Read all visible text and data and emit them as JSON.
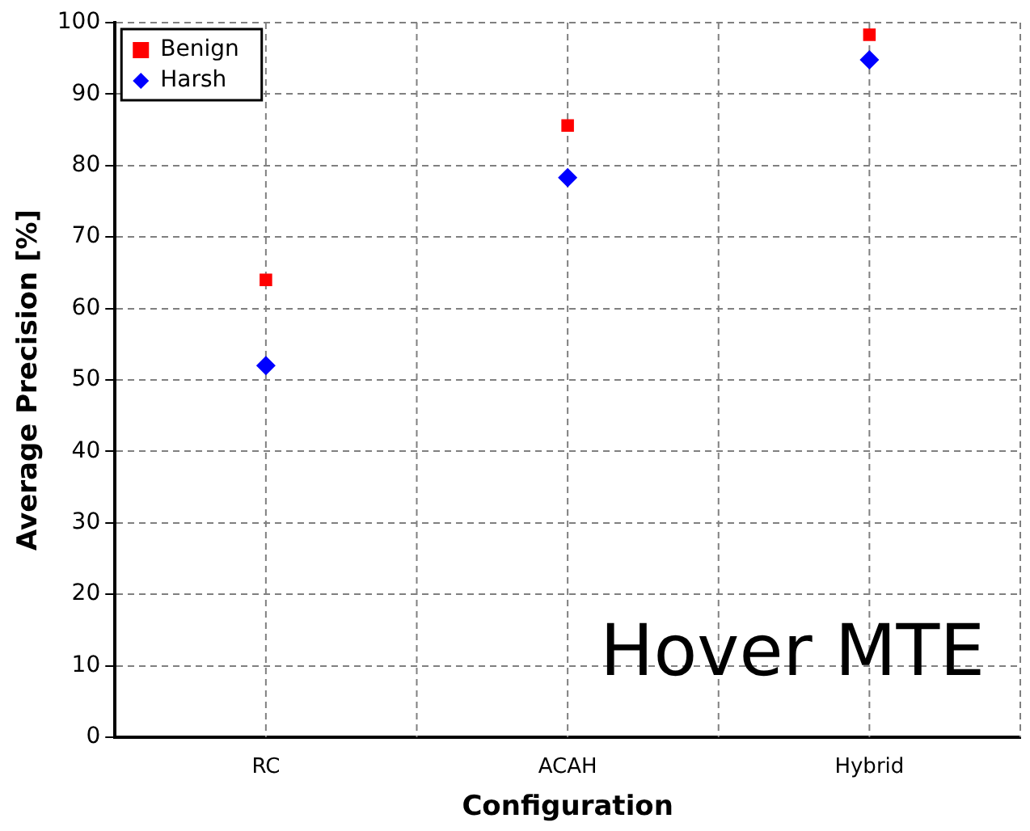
{
  "chart_data": {
    "type": "scatter",
    "xlabel": "Configuration",
    "ylabel": "Average Precision [%]",
    "categories": [
      "RC",
      "ACAH",
      "Hybrid"
    ],
    "series": [
      {
        "name": "Benign",
        "color": "#ff0000",
        "marker": "square",
        "values": [
          64,
          85.6,
          98.3
        ]
      },
      {
        "name": "Harsh",
        "color": "#0000ff",
        "marker": "diamond",
        "values": [
          52,
          78.3,
          94.8
        ]
      }
    ],
    "ylim": [
      0,
      100
    ],
    "yticks": [
      0,
      10,
      20,
      30,
      40,
      50,
      60,
      70,
      80,
      90,
      100
    ],
    "grid": true,
    "legend": "top left",
    "annotations": [
      "Hover MTE"
    ]
  }
}
